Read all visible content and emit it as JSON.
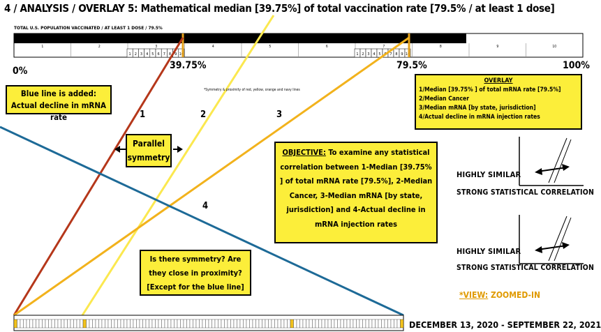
{
  "header": {
    "title": "4 / ANALYSIS / OVERLAY 5: Mathematical median [39.75%] of total vaccination rate [79.5% / at least 1 dose]",
    "subtitle": "TOTAL U.S. POPULATION VACCINATED / AT LEAST 1 DOSE / 79.5%"
  },
  "top_bar": {
    "fill_percent": 79.5,
    "deciles": [
      "1",
      "2",
      "3",
      "4",
      "5",
      "6",
      "7",
      "8",
      "9",
      "10"
    ],
    "zoom_ticks_a": [
      "1",
      "2",
      "3",
      "4",
      "5",
      "6",
      "7",
      "8",
      "9",
      "10"
    ],
    "zoom_ticks_b": [
      "1",
      "2",
      "3",
      "4",
      "5",
      "6",
      "7",
      "8",
      "9",
      "10"
    ]
  },
  "scale": {
    "left": "0%",
    "median": "39.75%",
    "total": "79.5%",
    "right": "100%"
  },
  "note": "*Symmetry & proximity of red, yellow, orange and navy lines",
  "line_labels": [
    "1",
    "2",
    "3",
    "4"
  ],
  "callouts": {
    "blue_line": "Blue line is added: Actual decline in mRNA rate",
    "parallel": "Parallel symmetry",
    "symmetry_question": "Is there symmetry? Are they close in proximity? [Except for the blue line]",
    "objective_heading": "OBJECTIVE:",
    "objective_text": "To examine any statistical correlation between 1-Median [39.75% ] of total mRNA rate [79.5%], 2-Median Cancer, 3-Median mRNA [by state, jurisdiction] and 4-Actual decline in mRNA injection rates"
  },
  "overlay": {
    "title": "OVERLAY",
    "items": [
      "1/Median [39.75% ] of total mRNA rate [79.5%]",
      "2/Median Cancer",
      "3/Median mRNA [by state, jurisdiction]",
      "4/Actual decline in mRNA injection rates"
    ]
  },
  "similar_1": {
    "label": "HIGHLY SIMILAR",
    "sub": "STRONG STATISTICAL CORRELATION"
  },
  "similar_2": {
    "label": "HIGHLY SIMILAR",
    "sub": "STRONG STATISTICAL CORRELATION"
  },
  "view": {
    "label": "*VIEW:",
    "value": "ZOOMED-IN"
  },
  "date_range": "DECEMBER 13, 2020 - SEPTEMBER 22, 2021",
  "colors": {
    "red_line": "#b5371a",
    "yellow_line": "#fbe84f",
    "orange_line": "#f2b21c",
    "navy_line": "#1d6a97",
    "callout_fill": "#fcee3a",
    "bar_fill": "#000000"
  }
}
